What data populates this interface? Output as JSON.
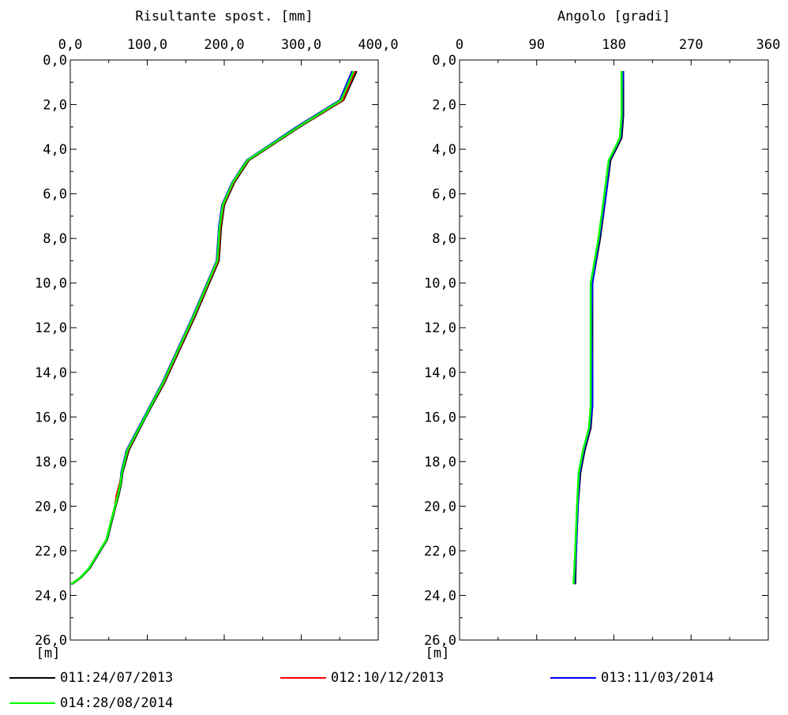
{
  "chart_data": [
    {
      "type": "line",
      "title": "Risultante spost. [mm]",
      "ylabel": "[m]",
      "xlim": [
        0,
        400
      ],
      "ylim": [
        26,
        0
      ],
      "xticks": [
        "0,0",
        "100,0",
        "200,0",
        "300,0",
        "400,0"
      ],
      "yticks": [
        "0,0",
        "2,0",
        "4,0",
        "6,0",
        "8,0",
        "10,0",
        "12,0",
        "14,0",
        "16,0",
        "18,0",
        "20,0",
        "22,0",
        "24,0",
        "26,0"
      ],
      "series": [
        {
          "name": "011:24/07/2013",
          "color": "#000000",
          "x": [
            372,
            355,
            298,
            232,
            213,
            200,
            196,
            193,
            162,
            122,
            98,
            76,
            68,
            66,
            63,
            59,
            48,
            25,
            14,
            2
          ],
          "y": [
            0.5,
            1.8,
            3.0,
            4.5,
            5.5,
            6.5,
            7.5,
            9.0,
            11.5,
            14.5,
            16.0,
            17.5,
            18.5,
            19.0,
            19.5,
            20.0,
            21.5,
            22.8,
            23.2,
            23.5
          ]
        },
        {
          "name": "012:10/12/2013",
          "color": "#ff0000",
          "x": [
            370,
            354,
            297,
            231,
            212,
            199,
            195,
            192,
            161,
            121,
            97,
            75,
            67,
            64,
            60,
            58,
            47,
            24,
            13,
            1
          ],
          "y": [
            0.5,
            1.8,
            3.0,
            4.5,
            5.5,
            6.5,
            7.5,
            9.0,
            11.5,
            14.5,
            16.0,
            17.5,
            18.5,
            19.0,
            19.5,
            20.0,
            21.5,
            22.8,
            23.2,
            23.5
          ]
        },
        {
          "name": "013:11/03/2014",
          "color": "#0000ff",
          "x": [
            366,
            350,
            294,
            229,
            210,
            197,
            193,
            190,
            159,
            119,
            96,
            73,
            66,
            65,
            62,
            58,
            47,
            24,
            13,
            1
          ],
          "y": [
            0.5,
            1.8,
            3.0,
            4.5,
            5.5,
            6.5,
            7.5,
            9.0,
            11.5,
            14.5,
            16.0,
            17.5,
            18.5,
            19.0,
            19.5,
            20.0,
            21.5,
            22.8,
            23.2,
            23.5
          ]
        },
        {
          "name": "014:28/08/2014",
          "color": "#00ff00",
          "x": [
            368,
            352,
            296,
            230,
            211,
            198,
            194,
            191,
            160,
            120,
            97,
            74,
            67,
            65,
            62,
            58,
            47,
            24,
            13,
            1
          ],
          "y": [
            0.5,
            1.8,
            3.0,
            4.5,
            5.5,
            6.5,
            7.5,
            9.0,
            11.5,
            14.5,
            16.0,
            17.5,
            18.5,
            19.0,
            19.5,
            20.0,
            21.5,
            22.8,
            23.2,
            23.5
          ]
        }
      ]
    },
    {
      "type": "line",
      "title": "Angolo [gradi]",
      "ylabel": "[m]",
      "xlim": [
        0,
        360
      ],
      "ylim": [
        26,
        0
      ],
      "xticks": [
        "0",
        "90",
        "180",
        "270",
        "360"
      ],
      "yticks": [
        "0,0",
        "2,0",
        "4,0",
        "6,0",
        "8,0",
        "10,0",
        "12,0",
        "14,0",
        "16,0",
        "18,0",
        "20,0",
        "22,0",
        "24,0",
        "26,0"
      ],
      "series": [
        {
          "name": "011:24/07/2013",
          "color": "#000000",
          "x": [
            191,
            191,
            191,
            190,
            189,
            176,
            171,
            164,
            155,
            155,
            155,
            155,
            153,
            146,
            141,
            138,
            136,
            135
          ],
          "y": [
            0.5,
            1.5,
            2.5,
            3.0,
            3.5,
            4.5,
            6.0,
            8.0,
            10.0,
            12.0,
            14.0,
            15.5,
            16.5,
            17.5,
            18.5,
            20.0,
            22.0,
            23.5
          ]
        },
        {
          "name": "012:10/12/2013",
          "color": "#ff0000",
          "x": [
            190,
            190,
            190,
            189,
            188,
            175,
            170,
            163,
            154,
            154,
            154,
            154,
            152,
            145,
            140,
            137,
            135,
            134
          ],
          "y": [
            0.5,
            1.5,
            2.5,
            3.0,
            3.5,
            4.5,
            6.0,
            8.0,
            10.0,
            12.0,
            14.0,
            15.5,
            16.5,
            17.5,
            18.5,
            20.0,
            22.0,
            23.5
          ]
        },
        {
          "name": "013:11/03/2014",
          "color": "#0000ff",
          "x": [
            191,
            190,
            190,
            189,
            188,
            175,
            171,
            163,
            155,
            154,
            155,
            155,
            152,
            145,
            140,
            138,
            136,
            134
          ],
          "y": [
            0.5,
            1.5,
            2.5,
            3.0,
            3.5,
            4.5,
            6.0,
            8.0,
            10.0,
            12.0,
            14.0,
            15.5,
            16.5,
            17.5,
            18.5,
            20.0,
            22.0,
            23.5
          ]
        },
        {
          "name": "014:28/08/2014",
          "color": "#00ff00",
          "x": [
            189,
            189,
            189,
            188,
            187,
            174,
            169,
            162,
            153,
            153,
            153,
            153,
            151,
            144,
            139,
            137,
            135,
            133
          ],
          "y": [
            0.5,
            1.5,
            2.5,
            3.0,
            3.5,
            4.5,
            6.0,
            8.0,
            10.0,
            12.0,
            14.0,
            15.5,
            16.5,
            17.5,
            18.5,
            20.0,
            22.0,
            23.5
          ]
        }
      ]
    }
  ]
}
